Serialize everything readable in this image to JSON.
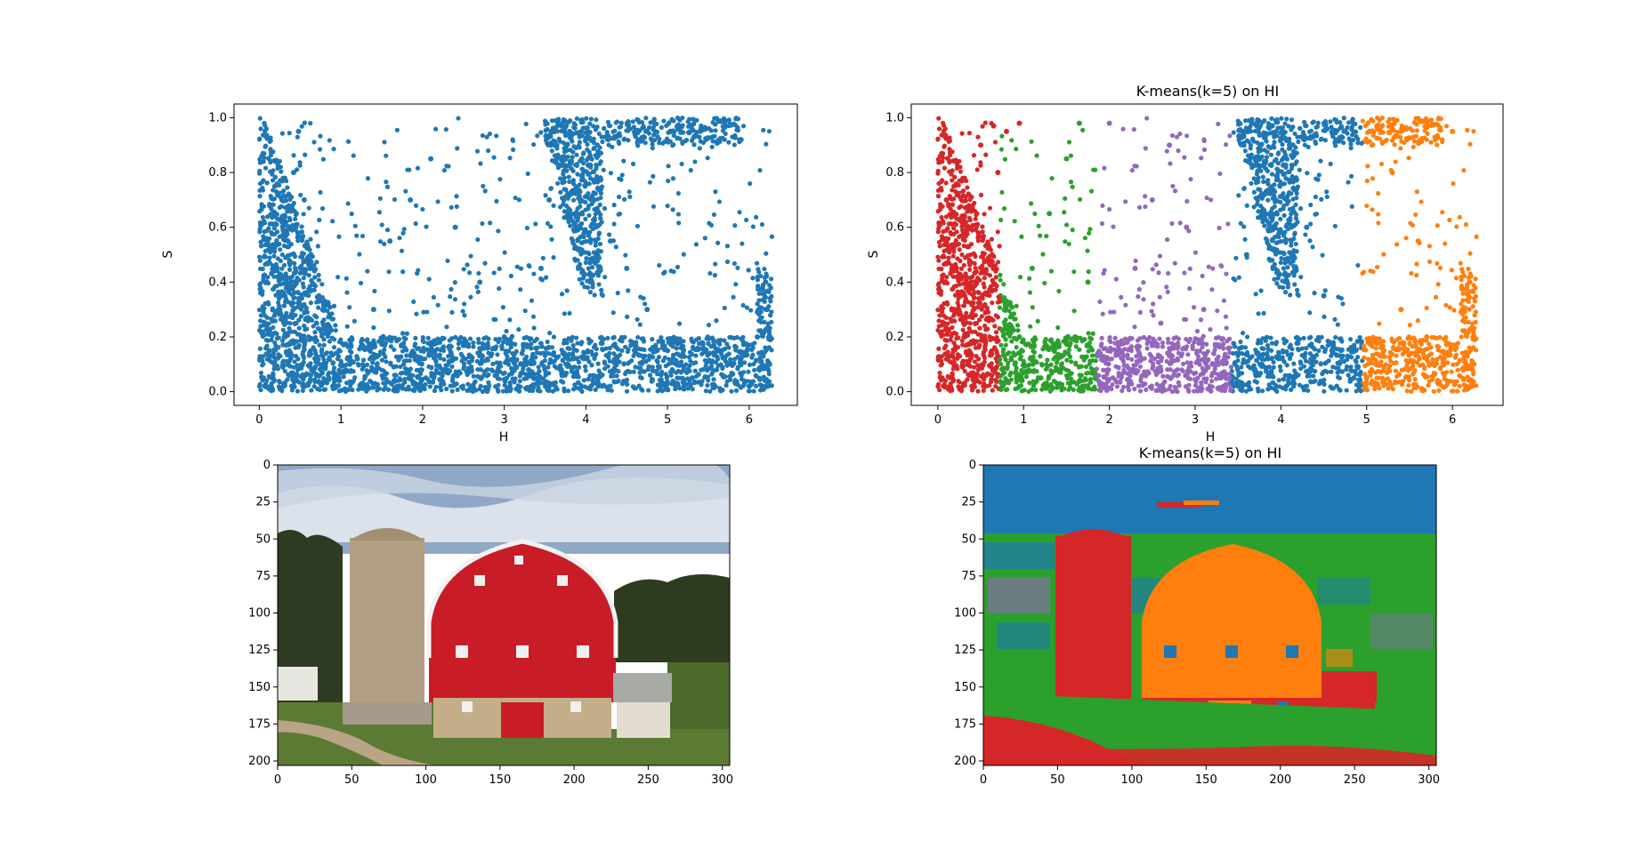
{
  "figure": {
    "background": "#ffffff",
    "palette": {
      "tab_blue": "#1f77b4",
      "tab_orange": "#ff7f0e",
      "tab_green": "#2ca02c",
      "tab_red": "#d62728",
      "tab_purple": "#9467bd"
    }
  },
  "chart_data": [
    {
      "type": "scatter",
      "title": "",
      "xlabel": "H",
      "ylabel": "S",
      "xlim": [
        -0.31,
        6.59
      ],
      "ylim": [
        -0.05,
        1.05
      ],
      "xticks": [
        0,
        1,
        2,
        3,
        4,
        5,
        6
      ],
      "yticks": [
        0.0,
        0.2,
        0.4,
        0.6,
        0.8,
        1.0
      ],
      "xtick_labels": [
        "0",
        "1",
        "2",
        "3",
        "4",
        "5",
        "6"
      ],
      "ytick_labels": [
        "0.0",
        "0.2",
        "0.4",
        "0.6",
        "0.8",
        "1.0"
      ],
      "grid": false,
      "point_color": "#1f77b4",
      "series": [
        {
          "color": "#1f77b4",
          "x": [
            0.05,
            0.12,
            0.25,
            0.35,
            0.42,
            0.48,
            0.55,
            0.62,
            0.7,
            0.78,
            0.85,
            0.92,
            1.05,
            1.2,
            1.4,
            1.6,
            1.85,
            2.1,
            2.4,
            2.7,
            3.0,
            3.3,
            3.45,
            3.55,
            3.62,
            3.7,
            3.8,
            3.95,
            4.1,
            4.3,
            4.5,
            4.75,
            5.0,
            5.3,
            5.6,
            5.9,
            6.1,
            6.2,
            6.25,
            6.22,
            0.3,
            0.6,
            0.9,
            1.3,
            2.0,
            2.8,
            3.6,
            4.2,
            5.2,
            6.0
          ],
          "y": [
            0.05,
            0.15,
            0.3,
            0.55,
            0.8,
            0.95,
            0.7,
            0.45,
            0.25,
            0.1,
            0.05,
            0.02,
            0.01,
            0.12,
            0.3,
            0.55,
            0.7,
            0.85,
            0.6,
            0.4,
            0.2,
            0.08,
            0.45,
            0.7,
            0.9,
            0.97,
            0.95,
            0.85,
            0.7,
            0.55,
            0.45,
            0.3,
            0.15,
            0.05,
            0.08,
            0.92,
            0.2,
            0.4,
            0.1,
            0.3,
            0.02,
            0.03,
            0.02,
            0.01,
            0.02,
            0.01,
            0.03,
            0.02,
            0.01,
            0.02
          ]
        }
      ]
    },
    {
      "type": "scatter",
      "title": "K-means(k=5) on HI",
      "xlabel": "H",
      "ylabel": "S",
      "xlim": [
        -0.31,
        6.59
      ],
      "ylim": [
        -0.05,
        1.05
      ],
      "xticks": [
        0,
        1,
        2,
        3,
        4,
        5,
        6
      ],
      "yticks": [
        0.0,
        0.2,
        0.4,
        0.6,
        0.8,
        1.0
      ],
      "xtick_labels": [
        "0",
        "1",
        "2",
        "3",
        "4",
        "5",
        "6"
      ],
      "ytick_labels": [
        "0.0",
        "0.2",
        "0.4",
        "0.6",
        "0.8",
        "1.0"
      ],
      "grid": false,
      "series": [
        {
          "color": "#d62728",
          "x": [
            0.05,
            0.2,
            0.35,
            0.5,
            0.65,
            0.8,
            0.95,
            0.1,
            0.4,
            0.7
          ],
          "y": [
            0.05,
            0.3,
            0.6,
            0.9,
            0.97,
            0.95,
            0.98,
            0.7,
            0.02,
            0.8
          ]
        },
        {
          "color": "#2ca02c",
          "x": [
            0.75,
            0.95,
            1.1,
            1.3,
            1.5,
            1.65,
            1.75,
            1.2,
            0.9,
            1.6
          ],
          "y": [
            0.02,
            0.2,
            0.45,
            0.65,
            0.85,
            0.98,
            0.4,
            0.05,
            0.1,
            0.2
          ]
        },
        {
          "color": "#9467bd",
          "x": [
            1.9,
            2.1,
            2.3,
            2.5,
            2.7,
            2.9,
            3.1,
            3.3,
            2.0,
            2.6
          ],
          "y": [
            0.02,
            0.15,
            0.45,
            0.7,
            0.9,
            0.6,
            0.3,
            0.05,
            0.98,
            0.25
          ]
        },
        {
          "color": "#1f77b4",
          "x": [
            3.45,
            3.6,
            3.75,
            3.9,
            4.1,
            4.3,
            4.5,
            4.7,
            4.85,
            3.55
          ],
          "y": [
            0.02,
            0.5,
            0.85,
            0.97,
            0.9,
            0.6,
            0.35,
            0.15,
            0.05,
            0.95
          ]
        },
        {
          "color": "#ff7f0e",
          "x": [
            5.0,
            5.2,
            5.4,
            5.6,
            5.8,
            6.0,
            6.2,
            6.25,
            5.3,
            5.7
          ],
          "y": [
            0.05,
            0.15,
            0.3,
            0.55,
            0.92,
            0.95,
            0.4,
            0.1,
            0.8,
            0.2
          ]
        }
      ]
    },
    {
      "type": "heatmap",
      "title": "",
      "image_kind": "photo",
      "xlim": [
        0,
        305
      ],
      "ylim": [
        203,
        0
      ],
      "xticks": [
        0,
        50,
        100,
        150,
        200,
        250,
        300
      ],
      "yticks": [
        0,
        25,
        50,
        75,
        100,
        125,
        150,
        175,
        200
      ],
      "xtick_labels": [
        "0",
        "50",
        "100",
        "150",
        "200",
        "250",
        "300"
      ],
      "ytick_labels": [
        "0",
        "25",
        "50",
        "75",
        "100",
        "125",
        "150",
        "175",
        "200"
      ]
    },
    {
      "type": "heatmap",
      "title": "K-means(k=5) on HI",
      "image_kind": "cluster_labels",
      "xlim": [
        0,
        305
      ],
      "ylim": [
        203,
        0
      ],
      "xticks": [
        0,
        50,
        100,
        150,
        200,
        250,
        300
      ],
      "yticks": [
        0,
        25,
        50,
        75,
        100,
        125,
        150,
        175,
        200
      ],
      "xtick_labels": [
        "0",
        "50",
        "100",
        "150",
        "200",
        "250",
        "300"
      ],
      "ytick_labels": [
        "0",
        "25",
        "50",
        "75",
        "100",
        "125",
        "150",
        "175",
        "200"
      ]
    }
  ]
}
